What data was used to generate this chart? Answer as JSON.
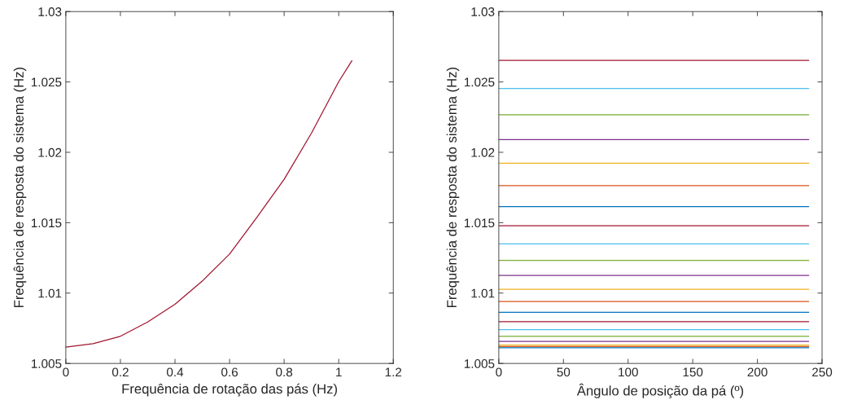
{
  "chart_data": [
    {
      "type": "line",
      "xlabel": "Frequência de rotação das pás (Hz)",
      "ylabel": "Frequência de resposta do sistema (Hz)",
      "xlim": [
        0,
        1.2
      ],
      "xticks": [
        0,
        0.2,
        0.4,
        0.6,
        0.8,
        1,
        1.2
      ],
      "ylim": [
        1.005,
        1.03
      ],
      "yticks": [
        1.005,
        1.01,
        1.015,
        1.02,
        1.025,
        1.03
      ],
      "grid": false,
      "series": [
        {
          "color": "#a2142f",
          "x": [
            0,
            0.1,
            0.2,
            0.3,
            0.4,
            0.5,
            0.6,
            0.7,
            0.8,
            0.9,
            1.0,
            1.049
          ],
          "values": [
            1.00616,
            1.00641,
            1.00693,
            1.00795,
            1.00921,
            1.01085,
            1.01277,
            1.01538,
            1.01808,
            1.02136,
            1.02502,
            1.02653
          ]
        }
      ]
    },
    {
      "type": "line",
      "xlabel": "Ângulo de posição da pá (º)",
      "ylabel": "Frequência de resposta do sistema (Hz)",
      "xlim": [
        0,
        250
      ],
      "xticks": [
        0,
        50,
        100,
        150,
        200,
        250
      ],
      "ylim": [
        1.005,
        1.03
      ],
      "yticks": [
        1.005,
        1.01,
        1.015,
        1.02,
        1.025,
        1.03
      ],
      "grid": false,
      "series": [
        {
          "color": "#0072bd",
          "x": [
            0,
            240
          ],
          "values": [
            1.00612,
            1.00612
          ]
        },
        {
          "color": "#d95319",
          "x": [
            0,
            240
          ],
          "values": [
            1.0062,
            1.0062
          ]
        },
        {
          "color": "#edb120",
          "x": [
            0,
            240
          ],
          "values": [
            1.00631,
            1.00631
          ]
        },
        {
          "color": "#7e2f8e",
          "x": [
            0,
            240
          ],
          "values": [
            1.00656,
            1.00656
          ]
        },
        {
          "color": "#77ac30",
          "x": [
            0,
            240
          ],
          "values": [
            1.00693,
            1.00693
          ]
        },
        {
          "color": "#4dbeee",
          "x": [
            0,
            240
          ],
          "values": [
            1.00741,
            1.00741
          ]
        },
        {
          "color": "#a2142f",
          "x": [
            0,
            240
          ],
          "values": [
            1.00797,
            1.00797
          ]
        },
        {
          "color": "#0072bd",
          "x": [
            0,
            240
          ],
          "values": [
            1.00863,
            1.00863
          ]
        },
        {
          "color": "#d95319",
          "x": [
            0,
            240
          ],
          "values": [
            1.0094,
            1.0094
          ]
        },
        {
          "color": "#edb120",
          "x": [
            0,
            240
          ],
          "values": [
            1.01027,
            1.01027
          ]
        },
        {
          "color": "#7e2f8e",
          "x": [
            0,
            240
          ],
          "values": [
            1.01125,
            1.01125
          ]
        },
        {
          "color": "#77ac30",
          "x": [
            0,
            240
          ],
          "values": [
            1.01233,
            1.01233
          ]
        },
        {
          "color": "#4dbeee",
          "x": [
            0,
            240
          ],
          "values": [
            1.01349,
            1.01349
          ]
        },
        {
          "color": "#a2142f",
          "x": [
            0,
            240
          ],
          "values": [
            1.01478,
            1.01478
          ]
        },
        {
          "color": "#0072bd",
          "x": [
            0,
            240
          ],
          "values": [
            1.01615,
            1.01615
          ]
        },
        {
          "color": "#d95319",
          "x": [
            0,
            240
          ],
          "values": [
            1.01763,
            1.01763
          ]
        },
        {
          "color": "#edb120",
          "x": [
            0,
            240
          ],
          "values": [
            1.01922,
            1.01922
          ]
        },
        {
          "color": "#7e2f8e",
          "x": [
            0,
            240
          ],
          "values": [
            1.0209,
            1.0209
          ]
        },
        {
          "color": "#77ac30",
          "x": [
            0,
            240
          ],
          "values": [
            1.02267,
            1.02267
          ]
        },
        {
          "color": "#4dbeee",
          "x": [
            0,
            240
          ],
          "values": [
            1.02454,
            1.02454
          ]
        },
        {
          "color": "#a2142f",
          "x": [
            0,
            240
          ],
          "values": [
            1.02653,
            1.02653
          ]
        }
      ]
    }
  ]
}
